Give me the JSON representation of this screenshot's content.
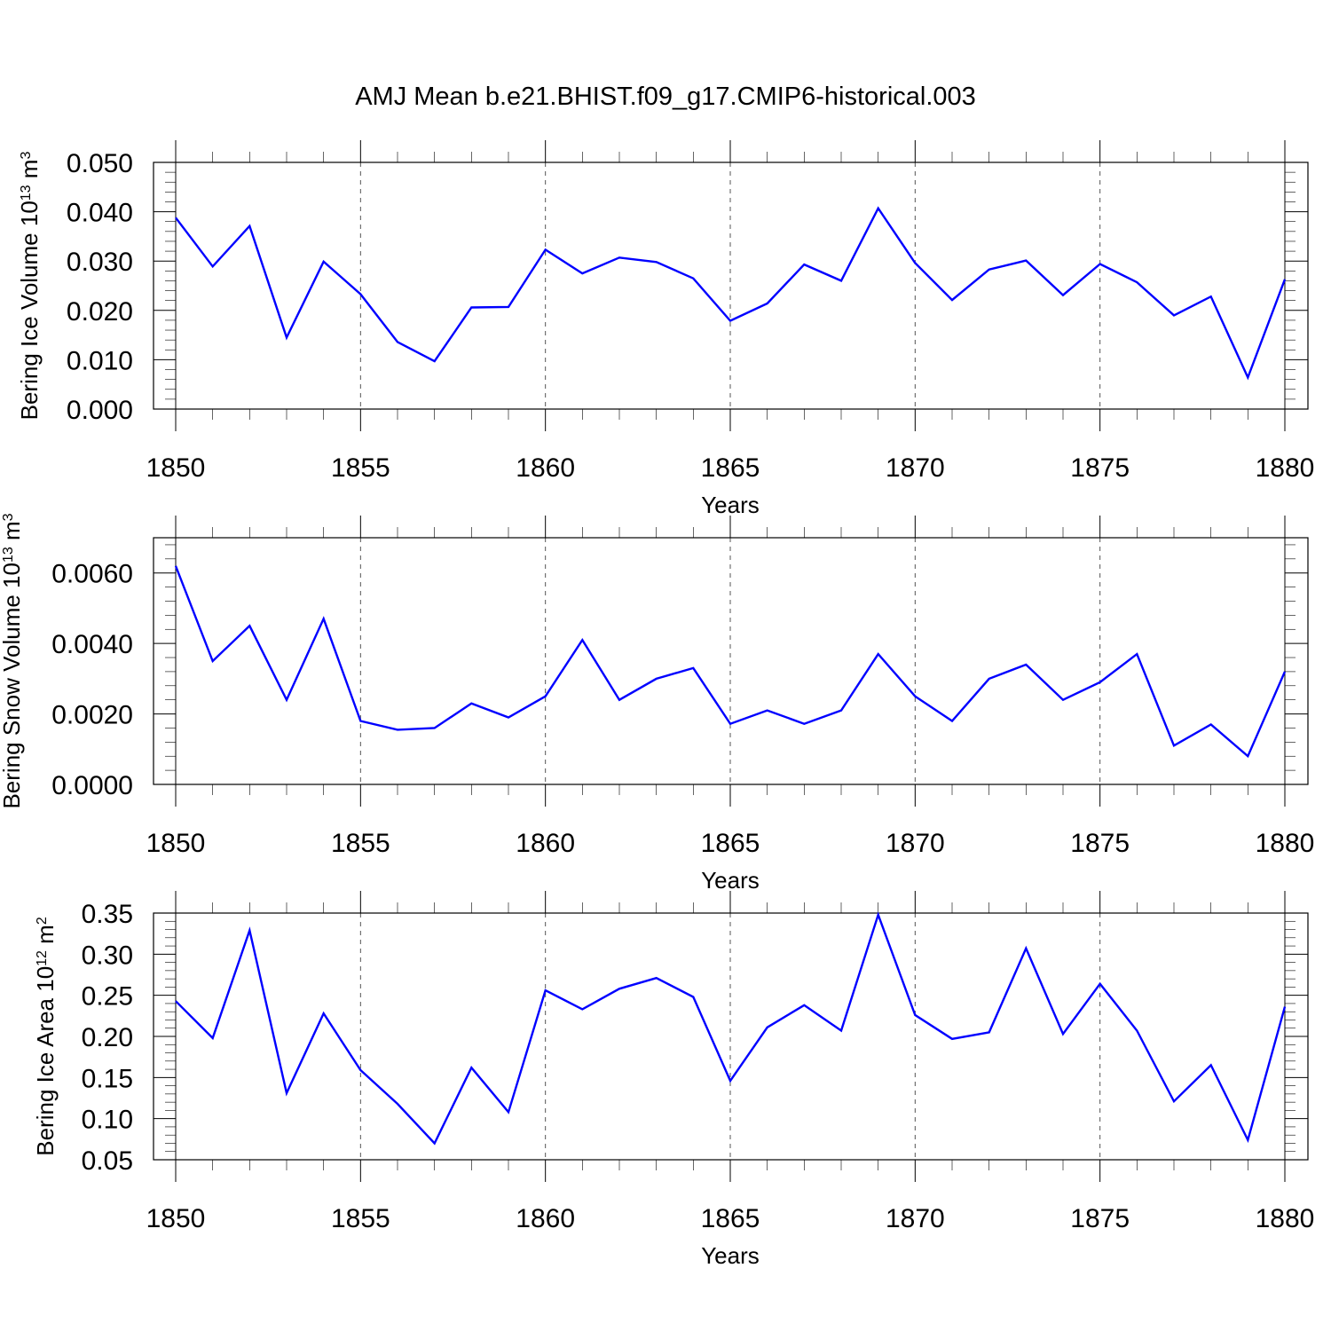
{
  "title": "AMJ Mean b.e21.BHIST.f09_g17.CMIP6-historical.003",
  "colors": {
    "line": "#0000ff",
    "grid": "#555555",
    "frame": "#000000"
  },
  "chart_data": [
    {
      "type": "line",
      "name": "ice-volume",
      "ylabel": "Bering Ice Volume 10",
      "ylabel_exp": "13",
      "ylabel_unit": " m",
      "ylabel_unit_exp": "3",
      "xlabel": "Years",
      "xlim": [
        1850,
        1880
      ],
      "ylim": [
        0.0,
        0.05
      ],
      "y_ticks": [
        0.0,
        0.01,
        0.02,
        0.03,
        0.04,
        0.05
      ],
      "y_tick_labels": [
        "0.000",
        "0.010",
        "0.020",
        "0.030",
        "0.040",
        "0.050"
      ],
      "x_ticks": [
        1850,
        1855,
        1860,
        1865,
        1870,
        1875,
        1880
      ],
      "x_tick_labels": [
        "1850",
        "1855",
        "1860",
        "1865",
        "1870",
        "1875",
        "1880"
      ],
      "grid": "vertical-dashed",
      "x": [
        1850,
        1851,
        1852,
        1853,
        1854,
        1855,
        1856,
        1857,
        1858,
        1859,
        1860,
        1861,
        1862,
        1863,
        1864,
        1865,
        1866,
        1867,
        1868,
        1869,
        1870,
        1871,
        1872,
        1873,
        1874,
        1875,
        1876,
        1877,
        1878,
        1879,
        1880
      ],
      "y": [
        0.0388,
        0.0289,
        0.0371,
        0.0145,
        0.0299,
        0.0233,
        0.0136,
        0.0097,
        0.0206,
        0.0207,
        0.0323,
        0.0275,
        0.0307,
        0.0298,
        0.0265,
        0.0179,
        0.0214,
        0.0293,
        0.026,
        0.0407,
        0.0296,
        0.0221,
        0.0283,
        0.0301,
        0.0231,
        0.0294,
        0.0257,
        0.019,
        0.0228,
        0.0064,
        0.0263
      ]
    },
    {
      "type": "line",
      "name": "snow-volume",
      "ylabel": "Bering Snow Volume 10",
      "ylabel_exp": "13",
      "ylabel_unit": " m",
      "ylabel_unit_exp": "3",
      "xlabel": "Years",
      "xlim": [
        1850,
        1880
      ],
      "ylim": [
        0.0,
        0.007
      ],
      "y_ticks": [
        0.0,
        0.002,
        0.004,
        0.006
      ],
      "y_tick_labels": [
        "0.0000",
        "0.0020",
        "0.0040",
        "0.0060"
      ],
      "x_ticks": [
        1850,
        1855,
        1860,
        1865,
        1870,
        1875,
        1880
      ],
      "x_tick_labels": [
        "1850",
        "1855",
        "1860",
        "1865",
        "1870",
        "1875",
        "1880"
      ],
      "grid": "vertical-dashed",
      "x": [
        1850,
        1851,
        1852,
        1853,
        1854,
        1855,
        1856,
        1857,
        1858,
        1859,
        1860,
        1861,
        1862,
        1863,
        1864,
        1865,
        1866,
        1867,
        1868,
        1869,
        1870,
        1871,
        1872,
        1873,
        1874,
        1875,
        1876,
        1877,
        1878,
        1879,
        1880
      ],
      "y": [
        0.0062,
        0.0035,
        0.0045,
        0.0024,
        0.0047,
        0.0018,
        0.00155,
        0.0016,
        0.0023,
        0.0019,
        0.0025,
        0.0041,
        0.0024,
        0.003,
        0.0033,
        0.00172,
        0.0021,
        0.00172,
        0.0021,
        0.0037,
        0.0025,
        0.0018,
        0.003,
        0.0034,
        0.0024,
        0.0029,
        0.0037,
        0.0011,
        0.0017,
        0.0008,
        0.0032
      ]
    },
    {
      "type": "line",
      "name": "ice-area",
      "ylabel": "Bering Ice Area 10",
      "ylabel_exp": "12",
      "ylabel_unit": " m",
      "ylabel_unit_exp": "2",
      "xlabel": "Years",
      "xlim": [
        1850,
        1880
      ],
      "ylim": [
        0.05,
        0.35
      ],
      "y_ticks": [
        0.05,
        0.1,
        0.15,
        0.2,
        0.25,
        0.3,
        0.35
      ],
      "y_tick_labels": [
        "0.05",
        "0.10",
        "0.15",
        "0.20",
        "0.25",
        "0.30",
        "0.35"
      ],
      "x_ticks": [
        1850,
        1855,
        1860,
        1865,
        1870,
        1875,
        1880
      ],
      "x_tick_labels": [
        "1850",
        "1855",
        "1860",
        "1865",
        "1870",
        "1875",
        "1880"
      ],
      "grid": "vertical-dashed",
      "x": [
        1850,
        1851,
        1852,
        1853,
        1854,
        1855,
        1856,
        1857,
        1858,
        1859,
        1860,
        1861,
        1862,
        1863,
        1864,
        1865,
        1866,
        1867,
        1868,
        1869,
        1870,
        1871,
        1872,
        1873,
        1874,
        1875,
        1876,
        1877,
        1878,
        1879,
        1880
      ],
      "y": [
        0.243,
        0.198,
        0.329,
        0.131,
        0.228,
        0.159,
        0.118,
        0.07,
        0.162,
        0.108,
        0.256,
        0.233,
        0.258,
        0.271,
        0.248,
        0.146,
        0.211,
        0.238,
        0.207,
        0.348,
        0.226,
        0.197,
        0.205,
        0.307,
        0.203,
        0.264,
        0.207,
        0.121,
        0.165,
        0.074,
        0.236
      ]
    }
  ]
}
